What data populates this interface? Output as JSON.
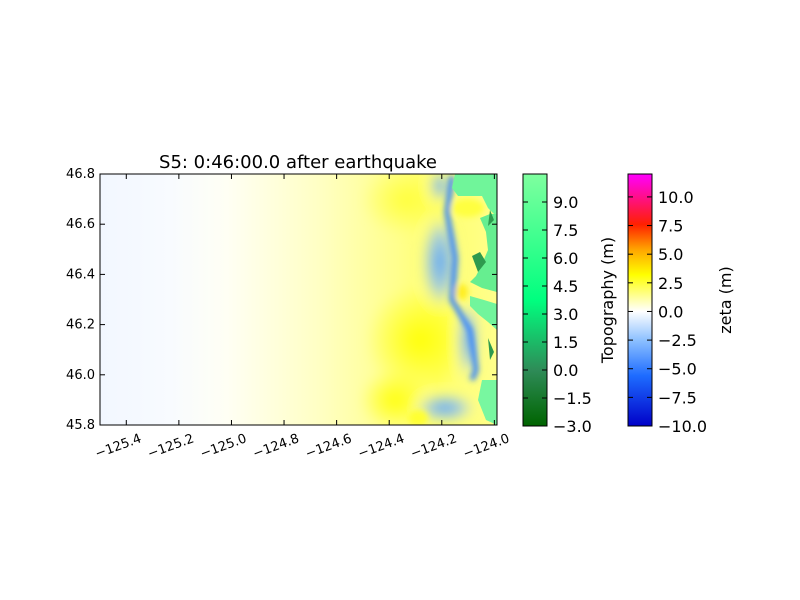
{
  "chart_data": {
    "type": "heatmap",
    "title": "S5: 0:46:00.0 after earthquake",
    "x_ticks": [
      "−125.4",
      "−125.2",
      "−125.0",
      "−124.8",
      "−124.6",
      "−124.4",
      "−124.2",
      "−124.0"
    ],
    "x_tick_values": [
      -125.4,
      -125.2,
      -125.0,
      -124.8,
      -124.6,
      -124.4,
      -124.2,
      -124.0
    ],
    "xlim": [
      -125.5,
      -123.99
    ],
    "y_ticks": [
      "45.8",
      "46.0",
      "46.2",
      "46.4",
      "46.6",
      "46.8"
    ],
    "y_tick_values": [
      45.8,
      46.0,
      46.2,
      46.4,
      46.6,
      46.8
    ],
    "ylim": [
      45.8,
      46.8
    ],
    "colorbars": [
      {
        "label": "Topography (m)",
        "range": [
          -3.0,
          10.5
        ],
        "ticks": [
          "−3.0",
          "−1.5",
          "0.0",
          "1.5",
          "3.0",
          "4.5",
          "6.0",
          "7.5",
          "9.0"
        ],
        "tick_values": [
          -3.0,
          -1.5,
          0.0,
          1.5,
          3.0,
          4.5,
          6.0,
          7.5,
          9.0
        ],
        "colors": [
          "#006400",
          "#2e8b57",
          "#00ff7f",
          "#7fff9f"
        ]
      },
      {
        "label": "zeta (m)",
        "range": [
          -10.0,
          12.0
        ],
        "ticks": [
          "−10.0",
          "−7.5",
          "−5.0",
          "−2.5",
          "0.0",
          "2.5",
          "5.0",
          "7.5",
          "10.0"
        ],
        "tick_values": [
          -10.0,
          -7.5,
          -5.0,
          -2.5,
          0.0,
          2.5,
          5.0,
          7.5,
          10.0
        ],
        "colors": [
          "#0000c8",
          "#1e90ff",
          "#ffffff",
          "#ffff00",
          "#ff8c00",
          "#ff0000",
          "#ff00ff"
        ]
      }
    ]
  }
}
